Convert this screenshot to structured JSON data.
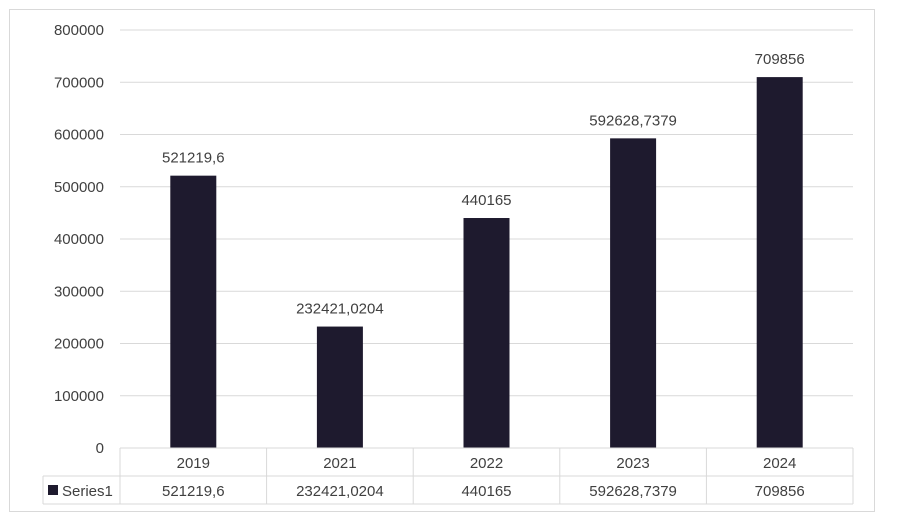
{
  "chart_data": {
    "type": "bar",
    "categories": [
      "2019",
      "2021",
      "2022",
      "2023",
      "2024"
    ],
    "series": [
      {
        "name": "Series1",
        "values": [
          521219.6,
          232421.0204,
          440165,
          592628.7379,
          709856
        ],
        "labels": [
          "521219,6",
          "232421,0204",
          "440165",
          "592628,7379",
          "709856"
        ],
        "color": "#1e1a2e"
      }
    ],
    "yticks": [
      "0",
      "100000",
      "200000",
      "300000",
      "400000",
      "500000",
      "600000",
      "700000",
      "800000"
    ],
    "ylim": [
      0,
      800000
    ],
    "grid": true,
    "legend": "data-table",
    "gridline_color": "#d9d9d9"
  }
}
